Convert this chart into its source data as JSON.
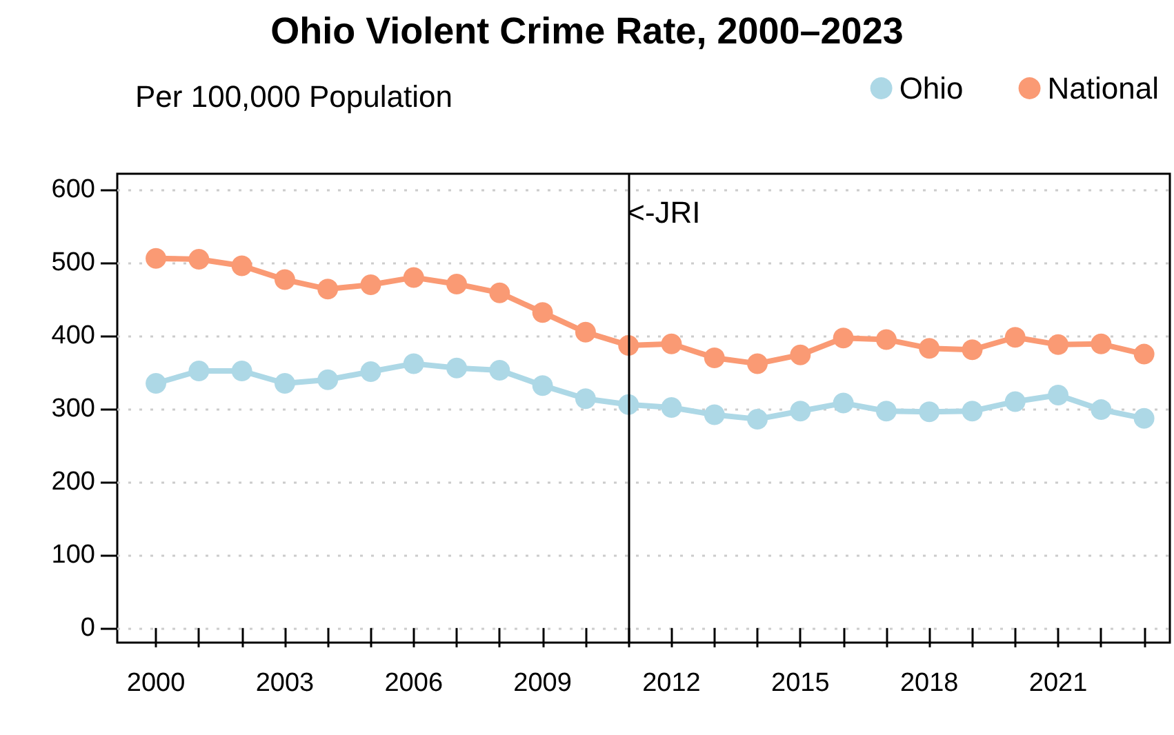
{
  "chart_data": {
    "type": "line",
    "title": "Ohio Violent Crime Rate, 2000–2023",
    "subtitle": "Per 100,000 Population",
    "x": [
      2000,
      2001,
      2002,
      2003,
      2004,
      2005,
      2006,
      2007,
      2008,
      2009,
      2010,
      2011,
      2012,
      2013,
      2014,
      2015,
      2016,
      2017,
      2018,
      2019,
      2020,
      2021,
      2022,
      2023
    ],
    "series": [
      {
        "name": "Ohio",
        "color": "#add8e6",
        "values": [
          335,
          352,
          352,
          335,
          340,
          351,
          362,
          356,
          353,
          332,
          314,
          306,
          302,
          292,
          286,
          297,
          308,
          297,
          296,
          297,
          310,
          319,
          299,
          287
        ]
      },
      {
        "name": "National",
        "color": "#fa9a74",
        "values": [
          506,
          505,
          496,
          477,
          464,
          470,
          480,
          471,
          459,
          432,
          405,
          387,
          389,
          370,
          362,
          374,
          397,
          395,
          383,
          381,
          398,
          388,
          389,
          375
        ]
      }
    ],
    "xlim": [
      1999.1,
      2023.6
    ],
    "xticks": [
      2000,
      {
        "value": 2001,
        "label": null
      },
      {
        "value": 2002,
        "label": null
      },
      2003,
      {
        "value": 2004,
        "label": null
      },
      {
        "value": 2005,
        "label": null
      },
      2006,
      {
        "value": 2007,
        "label": null
      },
      {
        "value": 2008,
        "label": null
      },
      2009,
      {
        "value": 2010,
        "label": null
      },
      {
        "value": 2011,
        "label": null
      },
      2012,
      {
        "value": 2013,
        "label": null
      },
      {
        "value": 2014,
        "label": null
      },
      2015,
      {
        "value": 2016,
        "label": null
      },
      {
        "value": 2017,
        "label": null
      },
      2018,
      {
        "value": 2019,
        "label": null
      },
      {
        "value": 2020,
        "label": null
      },
      2021,
      {
        "value": 2022,
        "label": null
      },
      {
        "value": 2023,
        "label": null
      }
    ],
    "ylim": [
      -20,
      622
    ],
    "yticks": [
      0,
      100,
      200,
      300,
      400,
      500,
      600
    ],
    "ref_lines": [
      {
        "axis": "x",
        "value": 2011,
        "label": "<-JRI",
        "color": "#000000"
      }
    ],
    "grid": "y",
    "legend": "top right",
    "marker": "circle",
    "line_style": "solid"
  }
}
